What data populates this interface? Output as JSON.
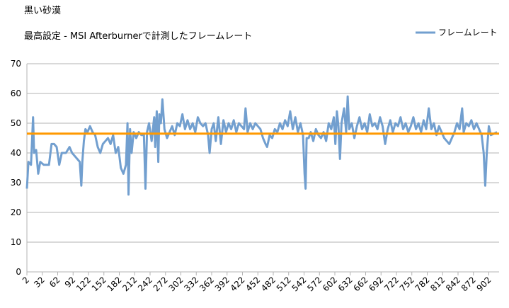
{
  "chart_data": {
    "type": "line",
    "title": "黒い砂漠",
    "subtitle": "最高設定  - MSI Afterburnerで計測したフレームレート",
    "x": [
      2,
      5,
      10,
      14,
      16,
      20,
      24,
      28,
      35,
      45,
      50,
      55,
      60,
      65,
      70,
      78,
      85,
      90,
      95,
      100,
      105,
      108,
      110,
      113,
      116,
      120,
      125,
      130,
      135,
      140,
      145,
      150,
      155,
      160,
      165,
      170,
      175,
      180,
      185,
      190,
      195,
      198,
      200,
      203,
      206,
      210,
      215,
      220,
      225,
      230,
      233,
      236,
      240,
      245,
      250,
      252,
      255,
      258,
      260,
      263,
      266,
      270,
      275,
      280,
      285,
      290,
      295,
      300,
      305,
      310,
      315,
      320,
      325,
      330,
      335,
      340,
      345,
      350,
      355,
      358,
      362,
      366,
      370,
      375,
      380,
      385,
      390,
      395,
      400,
      405,
      410,
      415,
      420,
      425,
      428,
      432,
      437,
      442,
      447,
      452,
      457,
      462,
      467,
      470,
      475,
      480,
      485,
      490,
      495,
      500,
      505,
      510,
      515,
      520,
      525,
      530,
      535,
      540,
      543,
      545,
      547,
      551,
      555,
      560,
      565,
      570,
      575,
      580,
      585,
      590,
      595,
      600,
      603,
      606,
      609,
      612,
      615,
      620,
      624,
      627,
      630,
      635,
      640,
      645,
      650,
      655,
      660,
      665,
      670,
      675,
      680,
      685,
      690,
      695,
      700,
      705,
      710,
      715,
      720,
      725,
      730,
      735,
      740,
      745,
      750,
      755,
      760,
      765,
      770,
      775,
      780,
      785,
      790,
      795,
      800,
      805,
      810,
      815,
      820,
      825,
      830,
      835,
      840,
      845,
      850,
      853,
      858,
      863,
      868,
      873,
      878,
      883,
      888,
      892,
      895,
      898,
      902,
      906,
      918
    ],
    "series": [
      {
        "name": "フレームレート",
        "color": "#729fcf",
        "values": [
          28,
          37,
          36,
          52,
          40,
          41,
          33,
          37,
          36,
          36,
          43,
          43,
          42,
          36,
          40,
          40,
          42,
          40,
          39,
          38,
          37,
          29,
          37,
          44,
          48,
          47,
          49,
          47,
          46,
          42,
          40,
          43,
          44,
          45,
          43,
          46,
          40,
          42,
          35,
          33,
          36,
          50,
          26,
          48,
          40,
          47,
          45,
          47,
          46,
          46,
          28,
          47,
          50,
          44,
          52,
          42,
          54,
          37,
          53,
          50,
          58,
          48,
          45,
          47,
          49,
          46,
          50,
          49,
          53,
          48,
          51,
          48,
          50,
          47,
          52,
          50,
          49,
          50,
          46,
          40,
          48,
          50,
          44,
          52,
          43,
          51,
          47,
          50,
          48,
          51,
          47,
          50,
          49,
          48,
          55,
          47,
          50,
          48,
          50,
          49,
          48,
          45,
          43,
          42,
          46,
          45,
          48,
          47,
          50,
          48,
          51,
          49,
          54,
          48,
          52,
          47,
          50,
          46,
          33,
          28,
          45,
          45,
          47,
          44,
          48,
          46,
          45,
          47,
          44,
          50,
          48,
          52,
          43,
          54,
          49,
          38,
          50,
          55,
          47,
          59,
          48,
          50,
          45,
          49,
          52,
          48,
          50,
          47,
          53,
          49,
          50,
          48,
          52,
          49,
          43,
          48,
          51,
          47,
          50,
          49,
          52,
          48,
          50,
          47,
          49,
          52,
          48,
          50,
          47,
          51,
          48,
          55,
          48,
          50,
          46,
          49,
          47,
          45,
          44,
          43,
          45,
          47,
          50,
          48,
          55,
          47,
          50,
          49,
          51,
          48,
          50,
          48,
          46,
          40,
          29,
          40,
          49,
          46,
          47
        ]
      }
    ],
    "reference_line": {
      "value": 46.5,
      "color": "#ff9900"
    },
    "xlim": [
      2,
      922
    ],
    "xticks": [
      2,
      32,
      62,
      92,
      122,
      152,
      182,
      212,
      242,
      272,
      302,
      332,
      362,
      392,
      422,
      452,
      482,
      512,
      542,
      572,
      602,
      632,
      662,
      692,
      722,
      752,
      782,
      812,
      842,
      872,
      902
    ],
    "ylim": [
      0,
      70
    ],
    "yticks": [
      0,
      10,
      20,
      30,
      40,
      50,
      60,
      70
    ],
    "grid": true,
    "legend": "top-right"
  }
}
